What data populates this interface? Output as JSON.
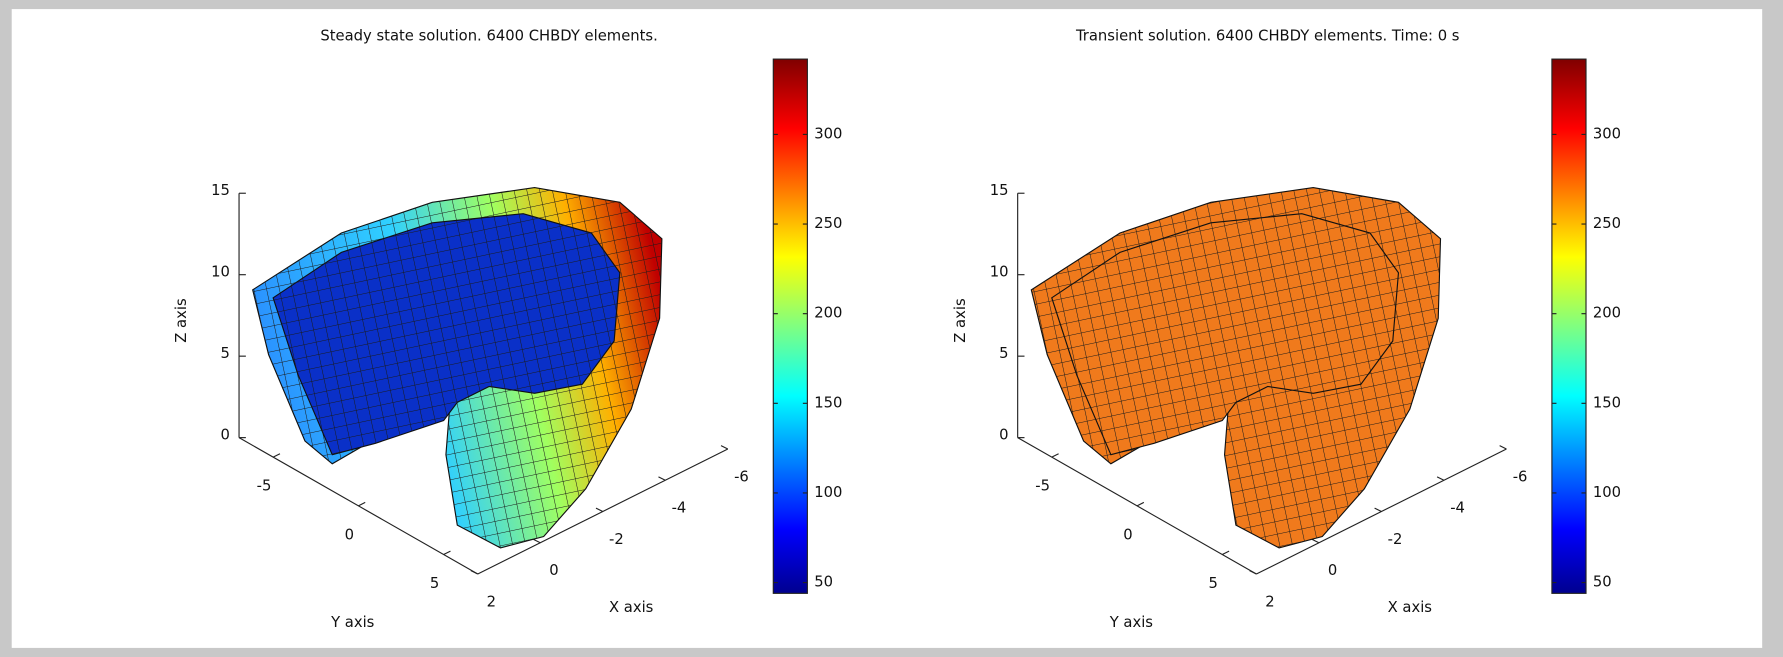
{
  "chart_data": [
    {
      "type": "surface",
      "title": "Steady state solution. 6400 CHBDY elements.",
      "x_label": "X axis",
      "y_label": "Y axis",
      "z_label": "Z axis",
      "xlim": [
        -6,
        2
      ],
      "xticks": [
        -6,
        -4,
        -2,
        0,
        2
      ],
      "ylim": [
        -7,
        7
      ],
      "yticks": [
        -5,
        0,
        5
      ],
      "zlim": [
        0,
        15
      ],
      "zticks": [
        0,
        5,
        10,
        15
      ],
      "surface_fill": "jet",
      "colorbar": {
        "lim": [
          44,
          342
        ],
        "ticks": [
          50,
          100,
          150,
          200,
          250,
          300
        ],
        "colormap": "jet"
      }
    },
    {
      "type": "surface",
      "title": "Transient solution.  6400 CHBDY elements. Time: 0 s",
      "x_label": "X axis",
      "y_label": "Y axis",
      "z_label": "Z axis",
      "xlim": [
        -6,
        2
      ],
      "xticks": [
        -6,
        -4,
        -2,
        0,
        2
      ],
      "ylim": [
        -7,
        7
      ],
      "yticks": [
        -5,
        0,
        5
      ],
      "zlim": [
        0,
        15
      ],
      "zticks": [
        0,
        5,
        10,
        15
      ],
      "surface_fill": "#f07a1c",
      "colorbar": {
        "lim": [
          44,
          342
        ],
        "ticks": [
          50,
          100,
          150,
          200,
          250,
          300
        ],
        "colormap": "jet"
      }
    }
  ]
}
